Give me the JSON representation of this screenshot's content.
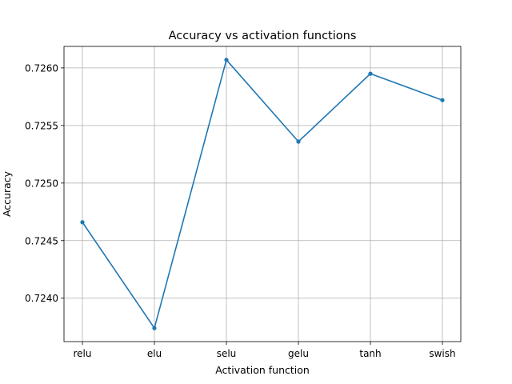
{
  "chart_data": {
    "type": "line",
    "title": "Accuracy vs activation functions",
    "xlabel": "Activation function",
    "ylabel": "Accuracy",
    "categories": [
      "relu",
      "elu",
      "selu",
      "gelu",
      "tanh",
      "swish"
    ],
    "series": [
      {
        "values": [
          0.72466,
          0.72374,
          0.72607,
          0.72536,
          0.72595,
          0.72572
        ],
        "color": "#1f77b4"
      }
    ],
    "yticks": [
      0.724,
      0.7245,
      0.725,
      0.7255,
      0.726
    ],
    "ytick_labels": [
      "0.7240",
      "0.7245",
      "0.7250",
      "0.7255",
      "0.7260"
    ],
    "ylim": [
      0.723623,
      0.726187
    ],
    "grid": true,
    "marker": "circle"
  }
}
